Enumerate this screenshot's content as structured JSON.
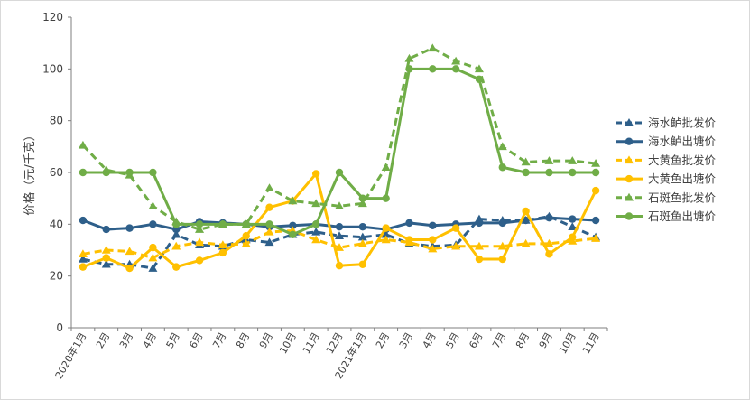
{
  "chart_data": {
    "type": "line",
    "title": "",
    "xlabel": "",
    "ylabel": "价格（元/千克）",
    "ylim": [
      0,
      120
    ],
    "yticks": [
      0,
      20,
      40,
      60,
      80,
      100,
      120
    ],
    "grid": false,
    "legend_position": "right",
    "categories": [
      "2020年1月",
      "2月",
      "3月",
      "4月",
      "5月",
      "6月",
      "7月",
      "8月",
      "9月",
      "10月",
      "11月",
      "12月",
      "2021年1月",
      "2月",
      "3月",
      "4月",
      "5月",
      "6月",
      "7月",
      "8月",
      "9月",
      "10月",
      "11月"
    ],
    "series": [
      {
        "name": "海水鲈批发价",
        "color": "#2e5f8a",
        "dash": true,
        "marker": "triangle",
        "values": [
          26.5,
          24.5,
          24.5,
          23,
          36,
          32,
          31.5,
          34,
          33,
          36,
          37,
          35.5,
          35,
          36,
          32.5,
          31.5,
          32,
          42,
          41.5,
          41.5,
          43,
          39,
          35
        ]
      },
      {
        "name": "海水鲈出塘价",
        "color": "#2e5f8a",
        "dash": false,
        "marker": "circle",
        "values": [
          41.5,
          38,
          38.5,
          40,
          38,
          41,
          40.5,
          40,
          39,
          39.5,
          40,
          39,
          39,
          38,
          40.5,
          39.5,
          40,
          40.5,
          40.5,
          41.5,
          42.5,
          42,
          41.5
        ]
      },
      {
        "name": "大黄鱼批发价",
        "color": "#ffc000",
        "dash": true,
        "marker": "triangle",
        "values": [
          28.5,
          30,
          29.5,
          27,
          31.5,
          33,
          32,
          32.5,
          37,
          37.5,
          34,
          31,
          32.5,
          34,
          33,
          30.5,
          31.5,
          31.5,
          31.5,
          32.5,
          32.5,
          33.5,
          34.5
        ]
      },
      {
        "name": "大黄鱼出塘价",
        "color": "#ffc000",
        "dash": false,
        "marker": "circle",
        "values": [
          23.5,
          27,
          23,
          31,
          23.5,
          26,
          29,
          35.5,
          46.5,
          49,
          59.5,
          24,
          24.5,
          38.5,
          34,
          34,
          38.5,
          26.5,
          26.5,
          45,
          28.5,
          35,
          53
        ]
      },
      {
        "name": "石斑鱼批发价",
        "color": "#70ad47",
        "dash": true,
        "marker": "triangle",
        "values": [
          70.5,
          61,
          59,
          47,
          41,
          38,
          40,
          40,
          54,
          49,
          48,
          47,
          48,
          62,
          104,
          108,
          103,
          100,
          70,
          64,
          64.5,
          64.5,
          63.5
        ]
      },
      {
        "name": "石斑鱼出塘价",
        "color": "#70ad47",
        "dash": false,
        "marker": "circle",
        "values": [
          60,
          60,
          60,
          60,
          40,
          40,
          40,
          40,
          40,
          36,
          40,
          60,
          50,
          50,
          100,
          100,
          100,
          96,
          62,
          60,
          60,
          60,
          60
        ]
      }
    ]
  }
}
